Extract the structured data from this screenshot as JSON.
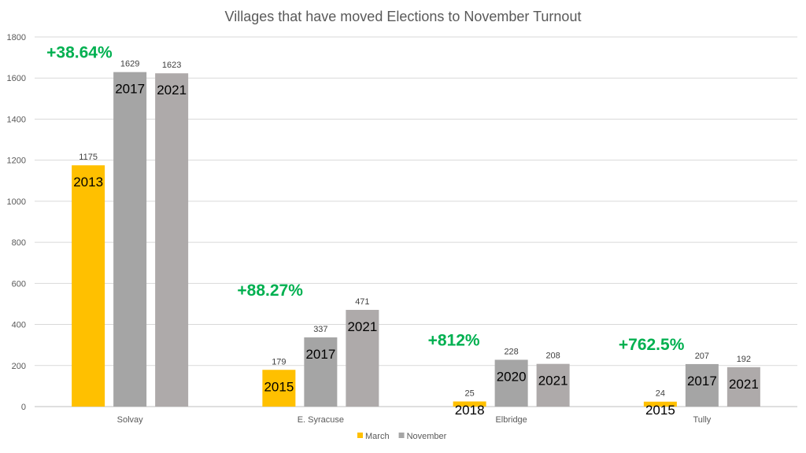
{
  "chart_data": {
    "type": "bar",
    "title": "Villages that have moved Elections to November Turnout",
    "ylim": [
      0,
      1800
    ],
    "yticks": [
      0,
      200,
      400,
      600,
      800,
      1000,
      1200,
      1400,
      1600,
      1800
    ],
    "grid": true,
    "legend_placement": "bottom",
    "legend": [
      {
        "name": "March",
        "color": "#FFC000"
      },
      {
        "name": "November",
        "color": "#A5A5A5"
      }
    ],
    "groups": [
      {
        "category": "Solvay",
        "change_label": "+38.64%",
        "bars": [
          {
            "series": "March",
            "year": "2013",
            "value": 1175,
            "color": "#FFC000"
          },
          {
            "series": "November",
            "year": "2017",
            "value": 1629,
            "color": "#A5A5A5"
          },
          {
            "series": "November",
            "year": "2021",
            "value": 1623,
            "color": "#AEAAAA"
          }
        ]
      },
      {
        "category": "E. Syracuse",
        "change_label": "+88.27%",
        "bars": [
          {
            "series": "March",
            "year": "2015",
            "value": 179,
            "color": "#FFC000"
          },
          {
            "series": "November",
            "year": "2017",
            "value": 337,
            "color": "#A5A5A5"
          },
          {
            "series": "November",
            "year": "2021",
            "value": 471,
            "color": "#AEAAAA"
          }
        ]
      },
      {
        "category": "Elbridge",
        "change_label": "+812%",
        "bars": [
          {
            "series": "March",
            "year": "2018",
            "value": 25,
            "color": "#FFC000"
          },
          {
            "series": "November",
            "year": "2020",
            "value": 228,
            "color": "#A5A5A5"
          },
          {
            "series": "November",
            "year": "2021",
            "value": 208,
            "color": "#AEAAAA"
          }
        ]
      },
      {
        "category": "Tully",
        "change_label": "+762.5%",
        "bars": [
          {
            "series": "March",
            "year": "2015",
            "value": 24,
            "color": "#FFC000"
          },
          {
            "series": "November",
            "year": "2017",
            "value": 207,
            "color": "#A5A5A5"
          },
          {
            "series": "November",
            "year": "2021",
            "value": 192,
            "color": "#AEAAAA"
          }
        ]
      }
    ]
  }
}
